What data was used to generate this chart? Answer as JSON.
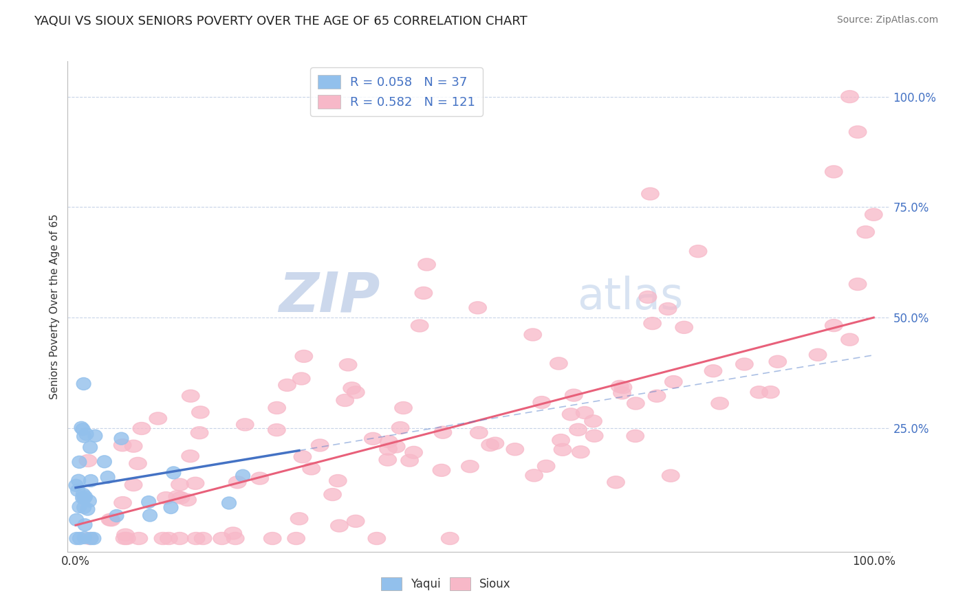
{
  "title": "YAQUI VS SIOUX SENIORS POVERTY OVER THE AGE OF 65 CORRELATION CHART",
  "source_text": "Source: ZipAtlas.com",
  "ylabel": "Seniors Poverty Over the Age of 65",
  "yaqui_R": 0.058,
  "yaqui_N": 37,
  "sioux_R": 0.582,
  "sioux_N": 121,
  "yaqui_color": "#92C0EC",
  "sioux_color": "#F7B8C8",
  "yaqui_line_color": "#4472C4",
  "sioux_line_color": "#E8607A",
  "yaqui_dash_color": "#7EB3E8",
  "background_color": "#FFFFFF",
  "grid_color": "#C8D4E8",
  "watermark_color_zip": "#B8CCE8",
  "watermark_color_atlas": "#C8D8F0",
  "title_fontsize": 13,
  "legend_fontsize": 13,
  "tick_label_color": "#4472C4",
  "sioux_line_intercept": 0.03,
  "sioux_line_slope": 0.47,
  "yaqui_line_intercept": 0.115,
  "yaqui_line_slope": 0.3
}
